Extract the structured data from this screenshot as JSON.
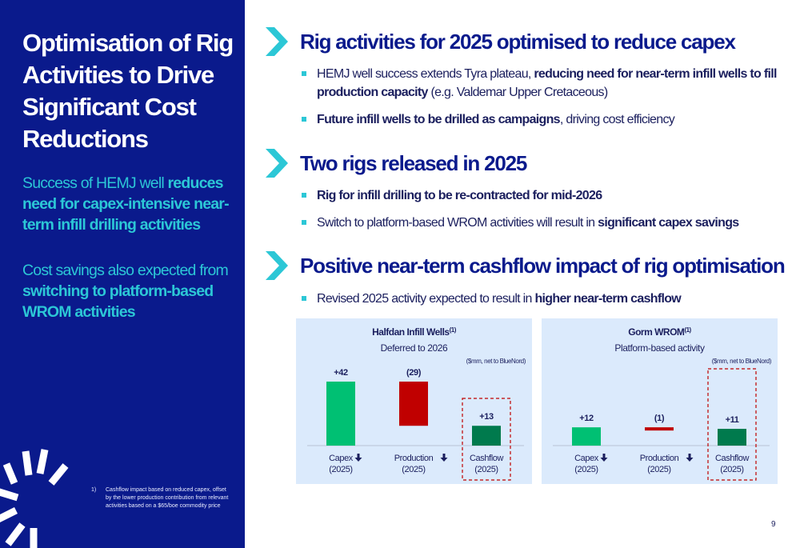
{
  "left": {
    "title": "Optimisation of Rig Activities to Drive Significant Cost Reductions",
    "sub1_pre": "Success of HEMJ well ",
    "sub1_bold": "reduces need for capex-intensive near-term infill drilling activities",
    "sub2_pre": "Cost savings also expected from ",
    "sub2_bold": "switching to platform-based WROM activities",
    "footnote_num": "1)",
    "footnote_text": "Cashflow impact based on reduced capex, offset by the lower production contribution from relevant activities based on a $65/boe commodity price"
  },
  "sections": [
    {
      "title": "Rig activities for 2025 optimised to reduce capex",
      "bullets": [
        {
          "pre": "HEMJ well success extends Tyra plateau, ",
          "bold": "reducing need for near-term infill wells to fill production capacity",
          "post": " (e.g. Valdemar Upper Cretaceous)"
        },
        {
          "pre": "",
          "bold": "Future infill wells to be drilled as campaigns",
          "post": ", driving cost efficiency"
        }
      ]
    },
    {
      "title": "Two rigs released in 2025",
      "bullets": [
        {
          "pre": "",
          "bold": "Rig for infill drilling to be re-contracted for mid-2026",
          "post": ""
        },
        {
          "pre": "Switch to platform-based WROM activities will result in ",
          "bold": "significant capex savings",
          "post": ""
        }
      ]
    },
    {
      "title": "Positive near-term cashflow impact of rig optimisation",
      "bullets": [
        {
          "pre": "Revised 2025 activity expected to result in ",
          "bold": "higher near-term cashflow",
          "post": ""
        }
      ]
    }
  ],
  "chart_data": [
    {
      "type": "bar",
      "title": "Halfdan Infill Wells",
      "title_sup": "(1)",
      "subtitle": "Deferred to 2026",
      "unit_note": "($mm, net to BlueNord)",
      "categories": [
        "Capex",
        "Production",
        "Cashflow"
      ],
      "category_sub": [
        "(2025)",
        "(2025)",
        "(2025)"
      ],
      "category_arrow": [
        true,
        true,
        false
      ],
      "values": [
        42,
        -29,
        13
      ],
      "labels": [
        "+42",
        "(29)",
        "+13"
      ],
      "colors": [
        "#00c073",
        "#c00000",
        "#007a4d"
      ],
      "highlight_index": 2
    },
    {
      "type": "bar",
      "title": "Gorm WROM",
      "title_sup": "(1)",
      "subtitle": "Platform-based activity",
      "unit_note": "($mm, net to BlueNord)",
      "categories": [
        "Capex",
        "Production",
        "Cashflow"
      ],
      "category_sub": [
        "(2025)",
        "(2025)",
        "(2025)"
      ],
      "category_arrow": [
        true,
        true,
        false
      ],
      "values": [
        12,
        -1,
        11
      ],
      "labels": [
        "+12",
        "(1)",
        "+11"
      ],
      "colors": [
        "#00c073",
        "#c00000",
        "#007a4d"
      ],
      "highlight_index": 2
    }
  ],
  "page_number": "9",
  "colors": {
    "navy": "#0a1a8c",
    "teal": "#2cc7d6",
    "green": "#00c073",
    "red": "#c00000",
    "dark_green": "#007a4d"
  }
}
